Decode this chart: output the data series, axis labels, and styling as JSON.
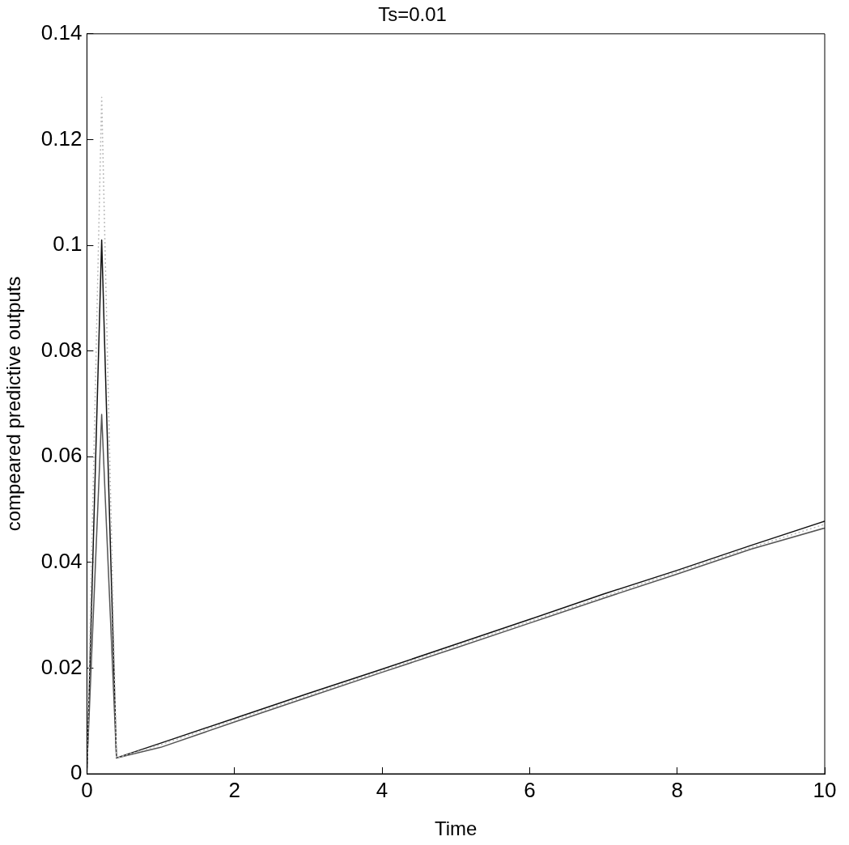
{
  "chart_data": {
    "type": "line",
    "title": "Ts=0.01",
    "xlabel": "Time",
    "ylabel": "compeared predictive outputs",
    "xlim": [
      0,
      10
    ],
    "ylim": [
      0,
      0.14
    ],
    "xticks": [
      0,
      2,
      4,
      6,
      8,
      10
    ],
    "yticks": [
      0,
      0.02,
      0.04,
      0.06,
      0.08,
      0.1,
      0.12,
      0.14
    ],
    "grid": false,
    "legend": false,
    "marker": "none",
    "series": [
      {
        "color": "#bbbbbb",
        "line_style": "dotted",
        "x": [
          0,
          0.2,
          0.4,
          1,
          2,
          3,
          4,
          5,
          6,
          7,
          8,
          9,
          10
        ],
        "values": [
          0,
          0.128,
          0.003,
          0.0055,
          0.0102,
          0.0148,
          0.0195,
          0.0242,
          0.0288,
          0.0335,
          0.0382,
          0.0428,
          0.0472
        ]
      },
      {
        "color": "#555555",
        "line_style": "solid",
        "x": [
          0,
          0.2,
          0.4,
          1,
          2,
          3,
          4,
          5,
          6,
          7,
          8,
          9,
          10
        ],
        "values": [
          0.001,
          0.068,
          0.003,
          0.005,
          0.0098,
          0.0145,
          0.0192,
          0.0238,
          0.0285,
          0.0332,
          0.0378,
          0.0425,
          0.0465
        ]
      },
      {
        "color": "#111111",
        "line_style": "solid",
        "x": [
          0,
          0.2,
          0.4,
          1,
          2,
          3,
          4,
          5,
          6,
          7,
          8,
          9,
          10
        ],
        "values": [
          0,
          0.101,
          0.003,
          0.0058,
          0.0105,
          0.0152,
          0.0198,
          0.0245,
          0.0292,
          0.034,
          0.0385,
          0.0432,
          0.0478
        ]
      }
    ]
  }
}
